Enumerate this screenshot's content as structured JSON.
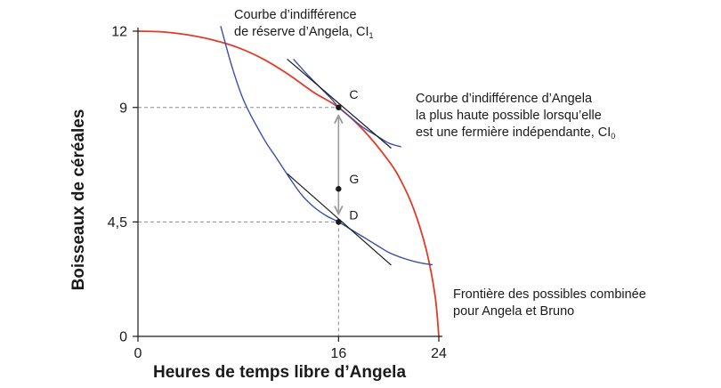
{
  "chart_data": {
    "type": "line",
    "xlabel": "Heures de temps libre d’Angela",
    "ylabel": "Boisseaux de céréales",
    "xlim": [
      0,
      24
    ],
    "ylim": [
      0,
      12
    ],
    "x_ticks": [
      {
        "value": 0,
        "label": "0"
      },
      {
        "value": 16,
        "label": "16"
      },
      {
        "value": 24,
        "label": "24"
      }
    ],
    "y_ticks": [
      {
        "value": 0,
        "label": "0"
      },
      {
        "value": 4.5,
        "label": "4,5"
      },
      {
        "value": 9,
        "label": "9"
      },
      {
        "value": 12,
        "label": "12"
      }
    ],
    "series": [
      {
        "id": "frontier",
        "color": "#e23a26",
        "points": [
          [
            0,
            12
          ],
          [
            2,
            11.97
          ],
          [
            4,
            11.85
          ],
          [
            6,
            11.65
          ],
          [
            8,
            11.35
          ],
          [
            10,
            10.9
          ],
          [
            12,
            10.3
          ],
          [
            14,
            9.6
          ],
          [
            16,
            9.0
          ],
          [
            18,
            8.1
          ],
          [
            20,
            6.9
          ],
          [
            21,
            6.1
          ],
          [
            22,
            5.0
          ],
          [
            23,
            3.4
          ],
          [
            23.7,
            1.6
          ],
          [
            24,
            0
          ]
        ]
      },
      {
        "id": "CI0",
        "color": "#3a4fa8",
        "points": [
          [
            12.4,
            10.9
          ],
          [
            13.5,
            10.3
          ],
          [
            14.5,
            9.8
          ],
          [
            15.5,
            9.3
          ],
          [
            16,
            9.0
          ],
          [
            17,
            8.6
          ],
          [
            18,
            8.2
          ],
          [
            19,
            7.9
          ],
          [
            20,
            7.6
          ],
          [
            21,
            7.45
          ]
        ]
      },
      {
        "id": "CI1",
        "color": "#3a4fa8",
        "points": [
          [
            6.6,
            12.2
          ],
          [
            7.5,
            10.6
          ],
          [
            8.5,
            9.2
          ],
          [
            10,
            7.8
          ],
          [
            11,
            7.05
          ],
          [
            12,
            6.3
          ],
          [
            13,
            5.6
          ],
          [
            14,
            5.1
          ],
          [
            15,
            4.75
          ],
          [
            16,
            4.5
          ],
          [
            17,
            4.2
          ],
          [
            18,
            3.9
          ],
          [
            19,
            3.6
          ],
          [
            20,
            3.3
          ],
          [
            21,
            3.1
          ],
          [
            22,
            2.95
          ],
          [
            23,
            2.85
          ],
          [
            23.5,
            2.82
          ]
        ]
      }
    ],
    "tangents": [
      {
        "id": "tangent-at-c",
        "from": [
          11.9,
          10.9
        ],
        "to": [
          20.2,
          7.4
        ]
      },
      {
        "id": "tangent-at-d",
        "from": [
          11.9,
          6.4
        ],
        "to": [
          20.2,
          2.8
        ]
      }
    ],
    "points": [
      {
        "label": "C",
        "x": 16,
        "y": 9
      },
      {
        "label": "G",
        "x": 16,
        "y": 5.8
      },
      {
        "label": "D",
        "x": 16,
        "y": 4.5
      }
    ],
    "annotations": {
      "ci1_line1": "Courbe d’indifférence",
      "ci1_line2_prefix": "de réserve d’Angela, CI",
      "ci1_sub": "1",
      "ci0_line1": "Courbe d’indifférence d’Angela",
      "ci0_line2": "la plus haute possible lorsqu’elle",
      "ci0_line3_prefix": "est une fermière indépendante, CI",
      "ci0_sub": "0",
      "frontier_line1": "Frontière des possibles combinée",
      "frontier_line2": "pour Angela et Bruno"
    },
    "colors": {
      "frontier": "#e23a26",
      "indifference": "#3a4fa8",
      "axis": "#1a1a1a",
      "dashed": "#8c8c8c",
      "arrow": "#9a9a9a"
    },
    "grid": false
  }
}
